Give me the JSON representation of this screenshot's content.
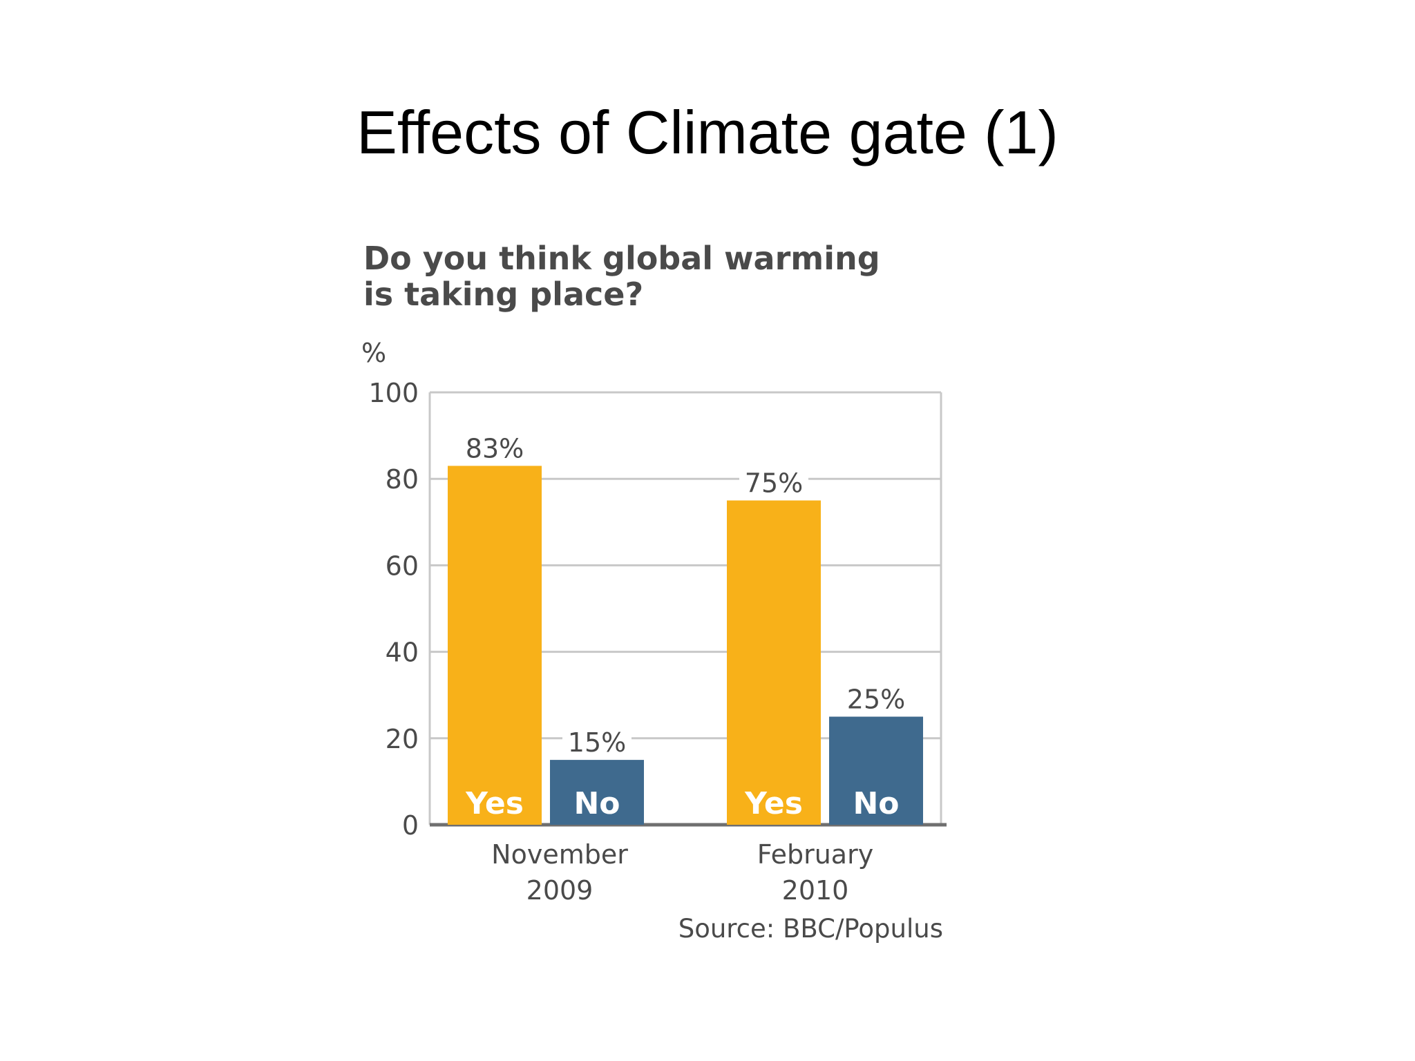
{
  "slide": {
    "title": "Effects of Climate gate (1)"
  },
  "colors": {
    "yes": "#F8B119",
    "no": "#3F6A8E",
    "grid": "#C8C8C8",
    "axis": "#6F6F6F",
    "text": "#4A4A4A",
    "bar_label": "#FFFFFF"
  },
  "chart_data": {
    "type": "bar",
    "title": "Do you think global warming is taking place?",
    "title_lines": [
      "Do you think global warming",
      "is taking place?"
    ],
    "ylabel": "%",
    "ylim": [
      0,
      100
    ],
    "yticks": [
      0,
      20,
      40,
      60,
      80,
      100
    ],
    "categories": [
      [
        "November",
        "2009"
      ],
      [
        "February",
        "2010"
      ]
    ],
    "series": [
      {
        "name": "Yes",
        "values": [
          83,
          75
        ],
        "labels": [
          "83%",
          "75%"
        ]
      },
      {
        "name": "No",
        "values": [
          15,
          25
        ],
        "labels": [
          "15%",
          "25%"
        ]
      }
    ],
    "grid": true,
    "source": "Source: BBC/Populus"
  }
}
